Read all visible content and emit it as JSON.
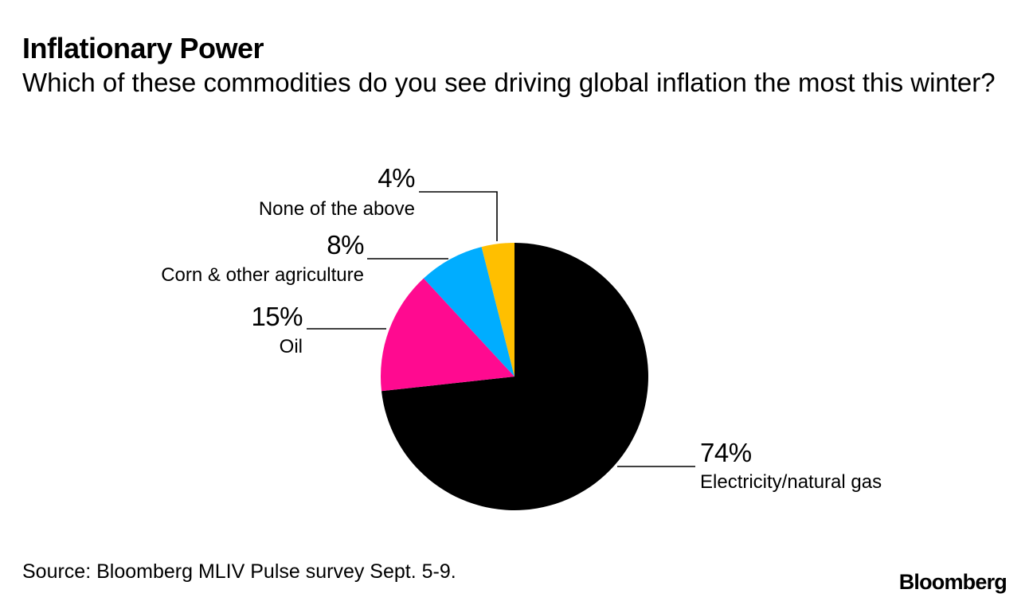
{
  "chart_data": {
    "type": "pie",
    "title": "Inflationary Power",
    "subtitle": "Which of these commodities do you see driving global inflation the most this winter?",
    "slices": [
      {
        "label": "Electricity/natural gas",
        "value": 74,
        "value_label": "74%",
        "color": "#000000"
      },
      {
        "label": "Oil",
        "value": 15,
        "value_label": "15%",
        "color": "#ff0a90"
      },
      {
        "label": "Corn & other agriculture",
        "value": 8,
        "value_label": "8%",
        "color": "#00adff"
      },
      {
        "label": "None of the above",
        "value": 4,
        "value_label": "4%",
        "color": "#ffbf00"
      }
    ],
    "start_angle_deg": 0,
    "direction": "clockwise"
  },
  "footer": {
    "source": "Source: Bloomberg MLIV Pulse survey Sept. 5-9.",
    "logo": "Bloomberg"
  }
}
